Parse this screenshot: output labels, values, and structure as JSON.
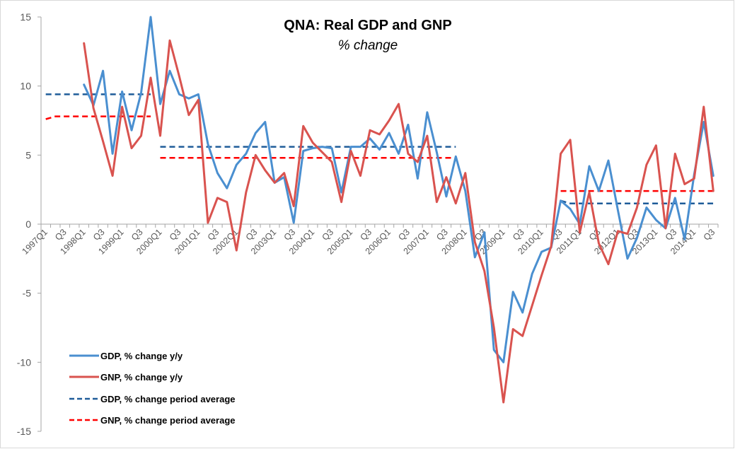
{
  "chart_data": {
    "type": "line",
    "title": "QNA: Real GDP and GNP",
    "subtitle": "% change",
    "xlabel": "",
    "ylabel": "",
    "ylim": [
      -15,
      15
    ],
    "yticks": [
      15,
      10,
      5,
      0,
      -5,
      -10,
      -15
    ],
    "grid": false,
    "legend_position": "bottom-left",
    "categories": [
      "1997Q1",
      "1997Q2",
      "1997Q3",
      "1997Q4",
      "1998Q1",
      "1998Q2",
      "1998Q3",
      "1998Q4",
      "1999Q1",
      "1999Q2",
      "1999Q3",
      "1999Q4",
      "2000Q1",
      "2000Q2",
      "2000Q3",
      "2000Q4",
      "2001Q1",
      "2001Q2",
      "2001Q3",
      "2001Q4",
      "2002Q1",
      "2002Q2",
      "2002Q3",
      "2002Q4",
      "2003Q1",
      "2003Q2",
      "2003Q3",
      "2003Q4",
      "2004Q1",
      "2004Q2",
      "2004Q3",
      "2004Q4",
      "2005Q1",
      "2005Q2",
      "2005Q3",
      "2005Q4",
      "2006Q1",
      "2006Q2",
      "2006Q3",
      "2006Q4",
      "2007Q1",
      "2007Q2",
      "2007Q3",
      "2007Q4",
      "2008Q1",
      "2008Q2",
      "2008Q3",
      "2008Q4",
      "2009Q1",
      "2009Q2",
      "2009Q3",
      "2009Q4",
      "2010Q1",
      "2010Q2",
      "2010Q3",
      "2010Q4",
      "2011Q1",
      "2011Q2",
      "2011Q3",
      "2011Q4",
      "2012Q1",
      "2012Q2",
      "2012Q3",
      "2012Q4",
      "2013Q1",
      "2013Q2",
      "2013Q3",
      "2013Q4",
      "2014Q1",
      "2014Q2",
      "2014Q3"
    ],
    "tick_labels": [
      "1997Q1",
      "Q3",
      "1998Q1",
      "Q3",
      "1999Q1",
      "Q3",
      "2000Q1",
      "Q3",
      "2001Q1",
      "Q3",
      "2002Q1",
      "Q3",
      "2003Q1",
      "Q3",
      "2004Q1",
      "Q3",
      "2005Q1",
      "Q3",
      "2006Q1",
      "Q3",
      "2007Q1",
      "Q3",
      "2008Q1",
      "Q3",
      "2009Q1",
      "Q3",
      "2010Q1",
      "Q3",
      "2011Q1",
      "Q3",
      "2012Q1",
      "Q3",
      "2013Q1",
      "Q3",
      "2014Q1",
      "Q3"
    ],
    "series": [
      {
        "name": "GDP, % change y/y",
        "style": "solid",
        "color": "#4a8fd0",
        "start": "1998Q1",
        "values": [
          10.1,
          8.6,
          11.1,
          5.1,
          9.6,
          6.8,
          9.5,
          15.0,
          8.7,
          11.1,
          9.4,
          9.1,
          9.4,
          5.8,
          3.7,
          2.6,
          4.3,
          5.1,
          6.6,
          7.4,
          3.0,
          3.4,
          0.1,
          5.3,
          5.5,
          5.6,
          5.5,
          2.3,
          5.6,
          5.6,
          6.2,
          5.4,
          6.6,
          5.1,
          7.2,
          3.3,
          8.1,
          5.2,
          2.0,
          4.9,
          2.4,
          -2.4,
          -0.6,
          -9.1,
          -10.0,
          -4.9,
          -6.4,
          -3.6,
          -2.0,
          -1.7,
          1.7,
          1.1,
          0.0,
          4.2,
          2.4,
          4.6,
          1.0,
          -2.5,
          -1.0,
          1.2,
          0.3,
          -0.3,
          1.9,
          -1.1,
          3.6,
          7.4,
          3.5
        ]
      },
      {
        "name": "GNP, % change y/y",
        "style": "solid",
        "color": "#d9534f",
        "start": "1998Q1",
        "values": [
          13.1,
          8.4,
          6.0,
          3.5,
          8.5,
          5.5,
          6.4,
          10.6,
          6.4,
          13.3,
          10.7,
          7.9,
          9.0,
          0.1,
          1.9,
          1.6,
          -1.9,
          2.3,
          5.0,
          3.9,
          3.0,
          3.7,
          1.3,
          7.1,
          5.9,
          5.2,
          4.5,
          1.6,
          5.3,
          3.5,
          6.8,
          6.5,
          7.5,
          8.7,
          5.1,
          4.5,
          6.4,
          1.6,
          3.4,
          1.5,
          3.7,
          -1.3,
          -3.4,
          -7.5,
          -12.9,
          -7.6,
          -8.1,
          -5.9,
          -3.7,
          -1.6,
          5.1,
          6.1,
          -0.6,
          2.3,
          -1.4,
          -2.9,
          -0.5,
          -0.7,
          1.2,
          4.3,
          5.7,
          -0.3,
          5.1,
          2.9,
          3.3,
          8.5,
          2.4
        ]
      },
      {
        "name": "GDP, % change period average",
        "style": "dashed",
        "color": "#1f5c99",
        "segments": [
          {
            "from": "1997Q1",
            "to": "1999Q4",
            "values": [
              9.4,
              9.4
            ]
          },
          {
            "from": "2000Q1",
            "to": "2007Q4",
            "values": [
              5.6,
              5.6
            ]
          },
          {
            "from": "2010Q3",
            "to": "2014Q3",
            "values": [
              1.7,
              1.5,
              1.5
            ]
          }
        ]
      },
      {
        "name": "GNP, % change period average",
        "style": "dashed",
        "color": "#ff0000",
        "segments": [
          {
            "from": "1997Q1",
            "to": "1999Q4",
            "values": [
              7.6,
              7.8,
              7.8
            ]
          },
          {
            "from": "2000Q1",
            "to": "2007Q4",
            "values": [
              4.8,
              4.8
            ]
          },
          {
            "from": "2010Q3",
            "to": "2014Q3",
            "values": [
              2.4,
              2.4
            ]
          }
        ]
      }
    ]
  }
}
